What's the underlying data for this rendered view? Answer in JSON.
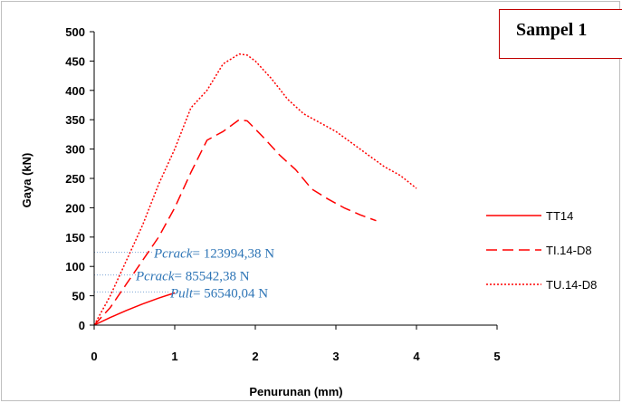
{
  "chart_data": {
    "type": "line",
    "title": "Sampel 1",
    "xlabel": "Penurunan (mm)",
    "ylabel": "Gaya (kN)",
    "xlim": [
      0,
      5
    ],
    "ylim": [
      0,
      500
    ],
    "x_ticks": [
      "0",
      "1",
      "2",
      "3",
      "4",
      "5"
    ],
    "y_ticks": [
      "0",
      "50",
      "100",
      "150",
      "200",
      "250",
      "300",
      "350",
      "400",
      "450",
      "500"
    ],
    "grid": false,
    "legend_position": "right",
    "series": [
      {
        "name": "TT14",
        "style": "solid",
        "color": "#ff0000",
        "x": [
          0,
          0.2,
          0.4,
          0.6,
          0.8,
          1.0
        ],
        "y": [
          0,
          13,
          25,
          36,
          46,
          55
        ]
      },
      {
        "name": "TI.14-D8",
        "style": "dashed",
        "color": "#ff0000",
        "x": [
          0,
          0.2,
          0.4,
          0.6,
          0.8,
          1.0,
          1.2,
          1.4,
          1.6,
          1.8,
          1.9,
          2.1,
          2.3,
          2.5,
          2.7,
          2.9,
          3.1,
          3.3,
          3.5
        ],
        "y": [
          0,
          30,
          70,
          110,
          150,
          200,
          260,
          315,
          330,
          350,
          348,
          320,
          290,
          265,
          232,
          215,
          200,
          188,
          178
        ]
      },
      {
        "name": "TU.14-D8",
        "style": "dotted",
        "color": "#ff0000",
        "x": [
          0,
          0.2,
          0.4,
          0.6,
          0.8,
          1.0,
          1.2,
          1.4,
          1.6,
          1.8,
          1.9,
          2.0,
          2.2,
          2.4,
          2.6,
          2.8,
          3.0,
          3.2,
          3.4,
          3.6,
          3.8,
          4.0
        ],
        "y": [
          0,
          50,
          110,
          170,
          240,
          300,
          370,
          400,
          445,
          462,
          460,
          450,
          420,
          385,
          360,
          345,
          330,
          310,
          290,
          270,
          255,
          233
        ]
      }
    ],
    "annotations": [
      {
        "label": "Pcrack",
        "text": "= 123994,38 N",
        "y": 124
      },
      {
        "label": "Pcrack",
        "text": "= 85542,38 N",
        "y": 85.5
      },
      {
        "label": "Pult",
        "text": "= 56540,04 N",
        "y": 56.5
      }
    ]
  }
}
